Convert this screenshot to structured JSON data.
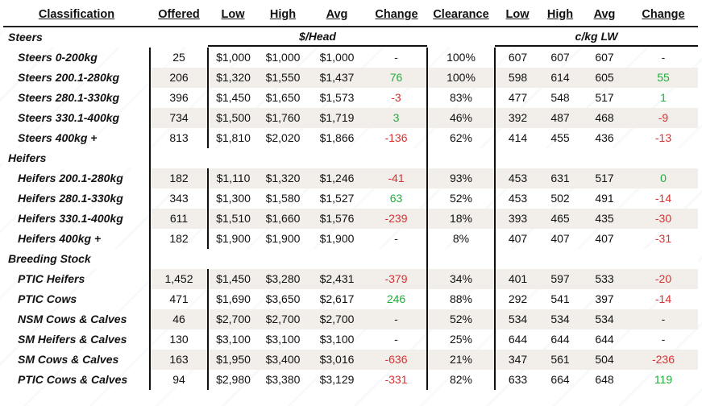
{
  "headers": {
    "classification": "Classification",
    "offered": "Offered",
    "low": "Low",
    "high": "High",
    "avg": "Avg",
    "change": "Change",
    "clearance": "Clearance",
    "low2": "Low",
    "high2": "High",
    "avg2": "Avg",
    "change2": "Change"
  },
  "units": {
    "head": "$/Head",
    "kg": "c/kg LW"
  },
  "colors": {
    "positive": "#1fae3a",
    "negative": "#d83131",
    "row_shade": "#f2eeea"
  },
  "sections": [
    {
      "title": "Steers",
      "rows": [
        {
          "name": "Steers 0-200kg",
          "offered": "25",
          "low": "$1,000",
          "high": "$1,000",
          "avg": "$1,000",
          "change": "-",
          "clearance": "100%",
          "kg_low": "607",
          "kg_high": "607",
          "kg_avg": "607",
          "kg_change": "-"
        },
        {
          "name": "Steers 200.1-280kg",
          "offered": "206",
          "low": "$1,320",
          "high": "$1,550",
          "avg": "$1,437",
          "change": "76",
          "clearance": "100%",
          "kg_low": "598",
          "kg_high": "614",
          "kg_avg": "605",
          "kg_change": "55"
        },
        {
          "name": "Steers 280.1-330kg",
          "offered": "396",
          "low": "$1,450",
          "high": "$1,650",
          "avg": "$1,573",
          "change": "-3",
          "clearance": "83%",
          "kg_low": "477",
          "kg_high": "548",
          "kg_avg": "517",
          "kg_change": "1"
        },
        {
          "name": "Steers 330.1-400kg",
          "offered": "734",
          "low": "$1,500",
          "high": "$1,760",
          "avg": "$1,719",
          "change": "3",
          "clearance": "46%",
          "kg_low": "392",
          "kg_high": "487",
          "kg_avg": "468",
          "kg_change": "-9"
        },
        {
          "name": "Steers 400kg +",
          "offered": "813",
          "low": "$1,810",
          "high": "$2,020",
          "avg": "$1,866",
          "change": "-136",
          "clearance": "62%",
          "kg_low": "414",
          "kg_high": "455",
          "kg_avg": "436",
          "kg_change": "-13"
        }
      ]
    },
    {
      "title": "Heifers",
      "rows": [
        {
          "name": "Heifers 200.1-280kg",
          "offered": "182",
          "low": "$1,110",
          "high": "$1,320",
          "avg": "$1,246",
          "change": "-41",
          "clearance": "93%",
          "kg_low": "453",
          "kg_high": "631",
          "kg_avg": "517",
          "kg_change": "0"
        },
        {
          "name": "Heifers 280.1-330kg",
          "offered": "343",
          "low": "$1,300",
          "high": "$1,580",
          "avg": "$1,527",
          "change": "63",
          "clearance": "52%",
          "kg_low": "453",
          "kg_high": "502",
          "kg_avg": "491",
          "kg_change": "-14"
        },
        {
          "name": "Heifers 330.1-400kg",
          "offered": "611",
          "low": "$1,510",
          "high": "$1,660",
          "avg": "$1,576",
          "change": "-239",
          "clearance": "18%",
          "kg_low": "393",
          "kg_high": "465",
          "kg_avg": "435",
          "kg_change": "-30"
        },
        {
          "name": "Heifers 400kg +",
          "offered": "182",
          "low": "$1,900",
          "high": "$1,900",
          "avg": "$1,900",
          "change": "-",
          "clearance": "8%",
          "kg_low": "407",
          "kg_high": "407",
          "kg_avg": "407",
          "kg_change": "-31"
        }
      ]
    },
    {
      "title": "Breeding Stock",
      "rows": [
        {
          "name": "PTIC Heifers",
          "offered": "1,452",
          "low": "$1,450",
          "high": "$3,280",
          "avg": "$2,431",
          "change": "-379",
          "clearance": "34%",
          "kg_low": "401",
          "kg_high": "597",
          "kg_avg": "533",
          "kg_change": "-20"
        },
        {
          "name": "PTIC Cows",
          "offered": "471",
          "low": "$1,690",
          "high": "$3,650",
          "avg": "$2,617",
          "change": "246",
          "clearance": "88%",
          "kg_low": "292",
          "kg_high": "541",
          "kg_avg": "397",
          "kg_change": "-14"
        },
        {
          "name": "NSM Cows & Calves",
          "offered": "46",
          "low": "$2,700",
          "high": "$2,700",
          "avg": "$2,700",
          "change": "-",
          "clearance": "52%",
          "kg_low": "534",
          "kg_high": "534",
          "kg_avg": "534",
          "kg_change": "-"
        },
        {
          "name": "SM Heifers & Calves",
          "offered": "130",
          "low": "$3,100",
          "high": "$3,100",
          "avg": "$3,100",
          "change": "-",
          "clearance": "25%",
          "kg_low": "644",
          "kg_high": "644",
          "kg_avg": "644",
          "kg_change": "-"
        },
        {
          "name": "SM Cows & Calves",
          "offered": "163",
          "low": "$1,950",
          "high": "$3,400",
          "avg": "$3,016",
          "change": "-636",
          "clearance": "21%",
          "kg_low": "347",
          "kg_high": "561",
          "kg_avg": "504",
          "kg_change": "-236"
        },
        {
          "name": "PTIC Cows & Calves",
          "offered": "94",
          "low": "$2,980",
          "high": "$3,380",
          "avg": "$3,129",
          "change": "-331",
          "clearance": "82%",
          "kg_low": "633",
          "kg_high": "664",
          "kg_avg": "648",
          "kg_change": "119"
        }
      ]
    }
  ]
}
